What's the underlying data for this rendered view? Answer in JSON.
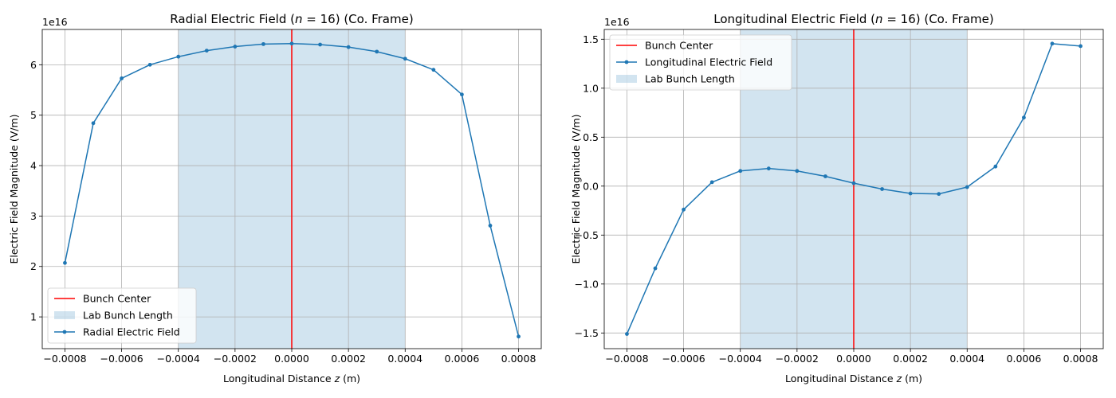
{
  "chart_data": [
    {
      "type": "line",
      "title": "Radial Electric Field (n = 16) (Co. Frame)",
      "title_parts": [
        "Radial Electric Field (",
        "n",
        " = 16) (Co. Frame)"
      ],
      "xlabel": "Longitudinal Distance z (m)",
      "xlabel_parts": [
        "Longitudinal Distance ",
        "z",
        " (m)"
      ],
      "ylabel": "Electric Field Magnitude (V/m)",
      "y_offset_label": "1e16",
      "xlim": [
        -0.00088,
        0.00088
      ],
      "ylim": [
        0.37,
        6.7
      ],
      "x_ticks": [
        -0.0008,
        -0.0006,
        -0.0004,
        -0.0002,
        0.0,
        0.0002,
        0.0004,
        0.0006,
        0.0008
      ],
      "x_tick_labels": [
        "−0.0008",
        "−0.0006",
        "−0.0004",
        "−0.0002",
        "0.0000",
        "0.0002",
        "0.0004",
        "0.0006",
        "0.0008"
      ],
      "y_ticks": [
        1,
        2,
        3,
        4,
        5,
        6
      ],
      "y_tick_labels": [
        "1",
        "2",
        "3",
        "4",
        "5",
        "6"
      ],
      "grid": true,
      "legend_position": "lower-left",
      "legend_entries": [
        {
          "label": "Bunch Center",
          "kind": "line",
          "color": "#ff0000"
        },
        {
          "label": "Lab Bunch Length",
          "kind": "patch",
          "color": "#1f77b4"
        },
        {
          "label": "Radial Electric Field",
          "kind": "line-marker",
          "color": "#1f77b4"
        }
      ],
      "bunch_center_x": 0.0,
      "bunch_span": [
        -0.0004,
        0.0004
      ],
      "series": [
        {
          "name": "Radial Electric Field",
          "color": "#1f77b4",
          "x": [
            -0.0008,
            -0.0007,
            -0.0006,
            -0.0005,
            -0.0004,
            -0.0003,
            -0.0002,
            -0.0001,
            0.0,
            0.0001,
            0.0002,
            0.0003,
            0.0004,
            0.0005,
            0.0006,
            0.0007,
            0.0008
          ],
          "y": [
            2.07,
            4.84,
            5.73,
            6.0,
            6.16,
            6.28,
            6.36,
            6.41,
            6.42,
            6.4,
            6.35,
            6.26,
            6.12,
            5.9,
            5.41,
            2.81,
            0.61
          ]
        }
      ]
    },
    {
      "type": "line",
      "title": "Longitudinal Electric Field (n = 16) (Co. Frame)",
      "title_parts": [
        "Longitudinal Electric Field (",
        "n",
        " = 16) (Co. Frame)"
      ],
      "xlabel": "Longitudinal Distance z (m)",
      "xlabel_parts": [
        "Longitudinal Distance ",
        "z",
        " (m)"
      ],
      "ylabel": "Electric Field Magnitude (V/m)",
      "y_offset_label": "1e16",
      "xlim": [
        -0.00088,
        0.00088
      ],
      "ylim": [
        -1.66,
        1.6
      ],
      "x_ticks": [
        -0.0008,
        -0.0006,
        -0.0004,
        -0.0002,
        0.0,
        0.0002,
        0.0004,
        0.0006,
        0.0008
      ],
      "x_tick_labels": [
        "−0.0008",
        "−0.0006",
        "−0.0004",
        "−0.0002",
        "0.0000",
        "0.0002",
        "0.0004",
        "0.0006",
        "0.0008"
      ],
      "y_ticks": [
        -1.5,
        -1.0,
        -0.5,
        0.0,
        0.5,
        1.0,
        1.5
      ],
      "y_tick_labels": [
        "−1.5",
        "−1.0",
        "−0.5",
        "0.0",
        "0.5",
        "1.0",
        "1.5"
      ],
      "grid": true,
      "legend_position": "upper-left",
      "legend_entries": [
        {
          "label": "Bunch Center",
          "kind": "line",
          "color": "#ff0000"
        },
        {
          "label": "Longitudinal Electric Field",
          "kind": "line-marker",
          "color": "#1f77b4"
        },
        {
          "label": "Lab Bunch Length",
          "kind": "patch",
          "color": "#1f77b4"
        }
      ],
      "bunch_center_x": 0.0,
      "bunch_span": [
        -0.0004,
        0.0004
      ],
      "series": [
        {
          "name": "Longitudinal Electric Field",
          "color": "#1f77b4",
          "x": [
            -0.0008,
            -0.0007,
            -0.0006,
            -0.0005,
            -0.0004,
            -0.0003,
            -0.0002,
            -0.0001,
            0.0,
            0.0001,
            0.0002,
            0.0003,
            0.0004,
            0.0005,
            0.0006,
            0.0007,
            0.0008
          ],
          "y": [
            -1.51,
            -0.84,
            -0.24,
            0.04,
            0.155,
            0.18,
            0.155,
            0.1,
            0.03,
            -0.03,
            -0.075,
            -0.08,
            -0.01,
            0.2,
            0.7,
            1.455,
            1.43
          ]
        }
      ]
    }
  ]
}
